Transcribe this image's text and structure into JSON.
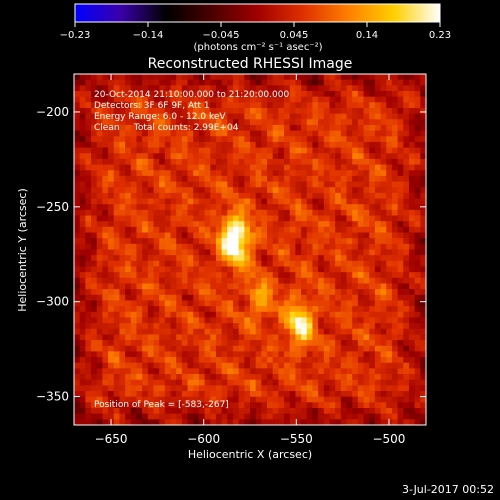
{
  "colorbar": {
    "tick_labels": [
      "−0.23",
      "−0.14",
      "−0.045",
      "0.045",
      "0.14",
      "0.23"
    ],
    "unit_label": "(photons cm⁻² s⁻¹ asec⁻²)",
    "range": [
      -0.23,
      0.23
    ],
    "stops": [
      "#0000ff",
      "#3a00aa",
      "#000000",
      "#4a0000",
      "#a00000",
      "#e03000",
      "#ff8000",
      "#ffd000",
      "#ffffff"
    ]
  },
  "chart_data": {
    "type": "heatmap",
    "title": "Reconstructed RHESSI Image",
    "xlabel": "Heliocentric X (arcsec)",
    "ylabel": "Heliocentric Y (arcsec)",
    "xlim": [
      -670,
      -480
    ],
    "ylim": [
      -365,
      -180
    ],
    "x_ticks": [
      -650,
      -600,
      -550,
      -500
    ],
    "y_ticks": [
      -200,
      -250,
      -300,
      -350
    ],
    "x_tick_labels": [
      "−650",
      "−600",
      "−550",
      "−500"
    ],
    "y_tick_labels": [
      "−200",
      "−250",
      "−300",
      "−350"
    ],
    "peak": [
      -583,
      -267
    ],
    "sources": [
      {
        "x": -583,
        "y": -267,
        "intensity": 0.23
      },
      {
        "x": -548,
        "y": -312,
        "intensity": 0.15
      },
      {
        "x": -570,
        "y": -298,
        "intensity": 0.08
      }
    ],
    "annotations": [
      "20-Oct-2014 21:10:00.000 to 21:20:00.000",
      "Detectors: 3F 6F 9F, Att 1",
      "Energy Range: 6.0 - 12.0 keV",
      "Clean     Total counts: 2.99E+04",
      "Position of Peak = [-583,-267]"
    ]
  },
  "footer": {
    "date": "3-Jul-2017 00:52"
  }
}
